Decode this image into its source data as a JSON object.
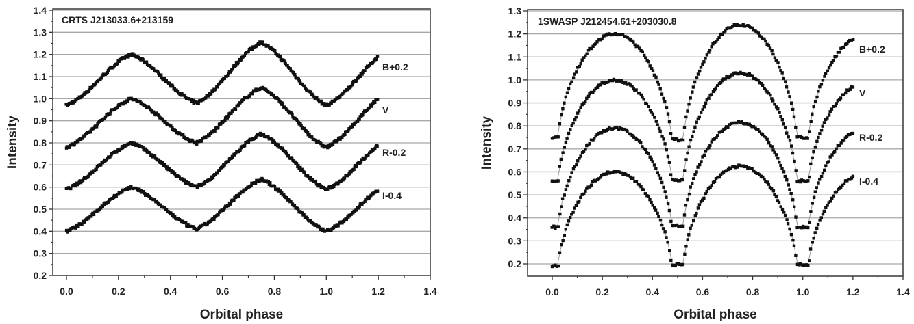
{
  "chart_data": [
    {
      "type": "scatter",
      "title": "CRTS J213033.6+213159",
      "xlabel": "Orbital phase",
      "ylabel": "Intensity",
      "xlim": [
        -0.05,
        1.4
      ],
      "ylim": [
        0.2,
        1.4
      ],
      "xticks": [
        "0.0",
        "0.2",
        "0.4",
        "0.6",
        "0.8",
        "1.0",
        "1.2",
        "1.4"
      ],
      "yticks": [
        "0.2",
        "0.3",
        "0.4",
        "0.5",
        "0.6",
        "0.7",
        "0.8",
        "0.9",
        "1.0",
        "1.1",
        "1.2",
        "1.3",
        "1.4"
      ],
      "grid": "horizontal",
      "profile": "sinusoidal",
      "series": [
        {
          "name": "B+0.2",
          "x": [
            0,
            0.25,
            0.5,
            0.75,
            1.0,
            1.2
          ],
          "y": [
            0.97,
            1.2,
            0.98,
            1.255,
            0.97,
            1.19
          ]
        },
        {
          "name": "V",
          "x": [
            0,
            0.25,
            0.5,
            0.75,
            1.0,
            1.2
          ],
          "y": [
            0.78,
            1.0,
            0.8,
            1.05,
            0.78,
            1.0
          ]
        },
        {
          "name": "R-0.2",
          "x": [
            0,
            0.25,
            0.5,
            0.75,
            1.0,
            1.2
          ],
          "y": [
            0.59,
            0.8,
            0.6,
            0.84,
            0.59,
            0.79
          ]
        },
        {
          "name": "I-0.4",
          "x": [
            0,
            0.25,
            0.5,
            0.75,
            1.0,
            1.2
          ],
          "y": [
            0.4,
            0.6,
            0.41,
            0.635,
            0.4,
            0.59
          ]
        }
      ]
    },
    {
      "type": "scatter",
      "title": "1SWASP J212454.61+203030.8",
      "xlabel": "Orbital phase",
      "ylabel": "Intensity",
      "xlim": [
        -0.05,
        1.4
      ],
      "ylim": [
        0.15,
        1.3
      ],
      "xticks": [
        "0.0",
        "0.2",
        "0.4",
        "0.6",
        "0.8",
        "1.0",
        "1.2",
        "1.4"
      ],
      "yticks": [
        "0.2",
        "0.3",
        "0.4",
        "0.5",
        "0.6",
        "0.7",
        "0.8",
        "0.9",
        "1.0",
        "1.1",
        "1.2",
        "1.3"
      ],
      "grid": "horizontal",
      "profile": "eclipsing",
      "series": [
        {
          "name": "B+0.2",
          "x": [
            0,
            0.25,
            0.5,
            0.75,
            1.0,
            1.2
          ],
          "y": [
            0.75,
            1.2,
            0.74,
            1.24,
            0.75,
            1.18
          ]
        },
        {
          "name": "V",
          "x": [
            0,
            0.25,
            0.5,
            0.75,
            1.0,
            1.2
          ],
          "y": [
            0.56,
            1.0,
            0.565,
            1.03,
            0.56,
            0.97
          ]
        },
        {
          "name": "R-0.2",
          "x": [
            0,
            0.25,
            0.5,
            0.75,
            1.0,
            1.2
          ],
          "y": [
            0.36,
            0.79,
            0.365,
            0.815,
            0.36,
            0.77
          ]
        },
        {
          "name": "I-0.4",
          "x": [
            0,
            0.25,
            0.5,
            0.75,
            1.0,
            1.2
          ],
          "y": [
            0.19,
            0.6,
            0.195,
            0.625,
            0.195,
            0.58
          ]
        }
      ]
    }
  ]
}
